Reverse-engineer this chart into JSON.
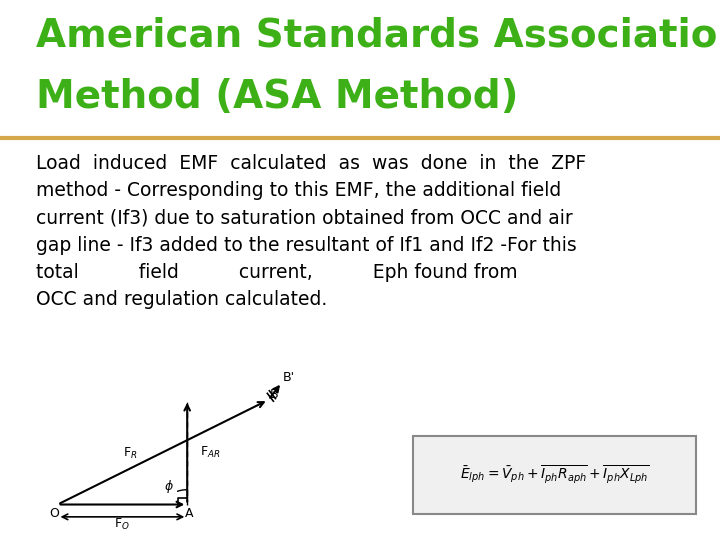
{
  "title_line1": "American Standards Association",
  "title_line2": "Method (ASA Method)",
  "title_color": "#3cb016",
  "title_fontsize": 28,
  "separator_color": "#d4a84b",
  "bg_color": "#ffffff",
  "body_text": "Load  induced  EMF  calculated  as  was  done  in  the  ZPF\nmethod - Corresponding to this EMF, the additional field\ncurrent (If3) due to saturation obtained from OCC and air\ngap line - If3 added to the resultant of If1 and If2 -For this\ntotal          field          current,          Eph found from\nOCC and regulation calculated.",
  "body_fontsize": 13.5,
  "body_color": "#000000"
}
